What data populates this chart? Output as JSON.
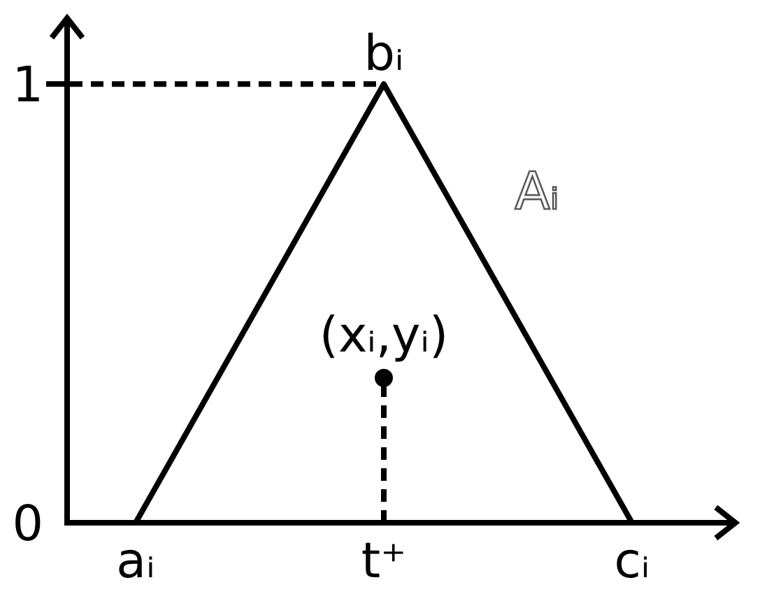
{
  "chart_data": {
    "type": "line",
    "categories": [
      "aᵢ",
      "t⁺",
      "cᵢ"
    ],
    "series": [
      {
        "name": "Aᵢ",
        "color": "#000000",
        "values": [
          0,
          1,
          0
        ]
      },
      {
        "type": "lollipop",
        "color": "#000000",
        "values": [
          null,
          0.33,
          null
        ],
        "line_style": "dashed",
        "marker": "circle"
      }
    ],
    "ylim": [
      0,
      1.15
    ],
    "yticks": [
      0,
      1
    ],
    "ref_lines": [
      {
        "axis": "y",
        "value": 1,
        "line_style": "dashed",
        "color": "#000000"
      }
    ],
    "annotations": [
      {
        "text": "bᵢ",
        "x": "t⁺",
        "y": 1
      },
      {
        "text": "(xᵢ,yᵢ)",
        "x": "t⁺",
        "y": 0.33
      }
    ]
  }
}
